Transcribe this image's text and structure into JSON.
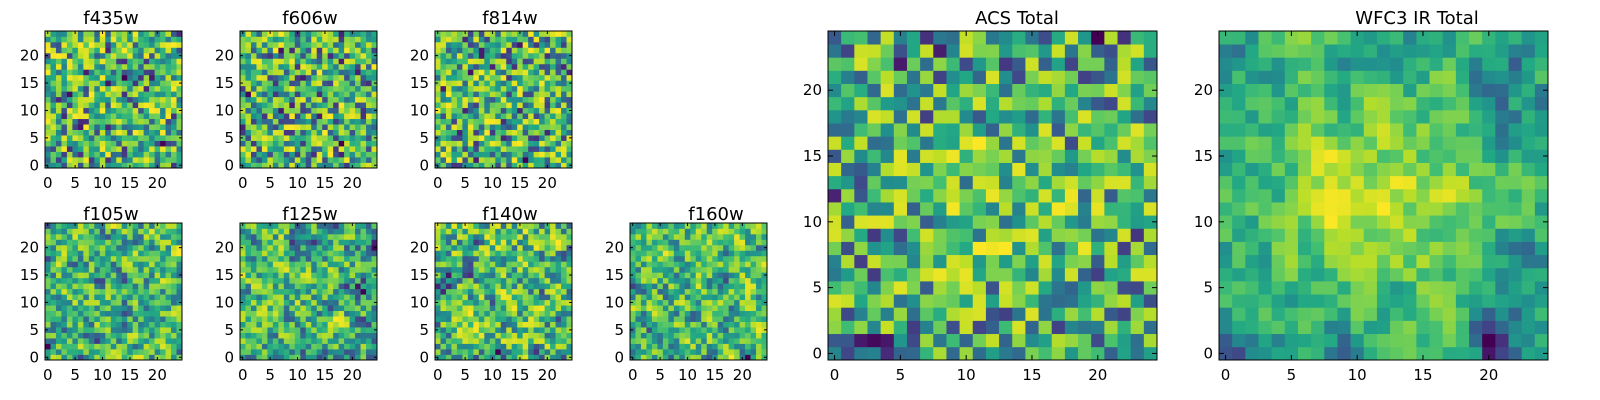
{
  "chart_data": [
    {
      "type": "heatmap",
      "title": "f435w",
      "colormap": "viridis",
      "grid": false,
      "xticks": [
        "0",
        "5",
        "10",
        "15",
        "20"
      ],
      "yticks": [
        "0",
        "5",
        "10",
        "15",
        "20"
      ],
      "xlim": [
        -0.5,
        24.5
      ],
      "ylim": [
        -0.5,
        24.5
      ],
      "shape": [
        25,
        25
      ],
      "seed": 11,
      "smooth": 0,
      "notes": "25x25 pixel cutout, noise-like values"
    },
    {
      "type": "heatmap",
      "title": "f606w",
      "colormap": "viridis",
      "grid": false,
      "xticks": [
        "0",
        "5",
        "10",
        "15",
        "20"
      ],
      "yticks": [
        "0",
        "5",
        "10",
        "15",
        "20"
      ],
      "xlim": [
        -0.5,
        24.5
      ],
      "ylim": [
        -0.5,
        24.5
      ],
      "shape": [
        25,
        25
      ],
      "seed": 23,
      "smooth": 0
    },
    {
      "type": "heatmap",
      "title": "f814w",
      "colormap": "viridis",
      "grid": false,
      "xticks": [
        "0",
        "5",
        "10",
        "15",
        "20"
      ],
      "yticks": [
        "0",
        "5",
        "10",
        "15",
        "20"
      ],
      "xlim": [
        -0.5,
        24.5
      ],
      "ylim": [
        -0.5,
        24.5
      ],
      "shape": [
        25,
        25
      ],
      "seed": 37,
      "smooth": 0
    },
    {
      "type": "heatmap",
      "title": "f105w",
      "colormap": "viridis",
      "grid": false,
      "xticks": [
        "0",
        "5",
        "10",
        "15",
        "20"
      ],
      "yticks": [
        "0",
        "5",
        "10",
        "15",
        "20"
      ],
      "xlim": [
        -0.5,
        24.5
      ],
      "ylim": [
        -0.5,
        24.5
      ],
      "shape": [
        25,
        25
      ],
      "seed": 41,
      "smooth": 1
    },
    {
      "type": "heatmap",
      "title": "f125w",
      "colormap": "viridis",
      "grid": false,
      "xticks": [
        "0",
        "5",
        "10",
        "15",
        "20"
      ],
      "yticks": [
        "0",
        "5",
        "10",
        "15",
        "20"
      ],
      "xlim": [
        -0.5,
        24.5
      ],
      "ylim": [
        -0.5,
        24.5
      ],
      "shape": [
        25,
        25
      ],
      "seed": 53,
      "smooth": 1
    },
    {
      "type": "heatmap",
      "title": "f140w",
      "colormap": "viridis",
      "grid": false,
      "xticks": [
        "0",
        "5",
        "10",
        "15",
        "20"
      ],
      "yticks": [
        "0",
        "5",
        "10",
        "15",
        "20"
      ],
      "xlim": [
        -0.5,
        24.5
      ],
      "ylim": [
        -0.5,
        24.5
      ],
      "shape": [
        25,
        25
      ],
      "seed": 67,
      "smooth": 1
    },
    {
      "type": "heatmap",
      "title": "f160w",
      "colormap": "viridis",
      "grid": false,
      "xticks": [
        "0",
        "5",
        "10",
        "15",
        "20"
      ],
      "yticks": [
        "0",
        "5",
        "10",
        "15",
        "20"
      ],
      "xlim": [
        -0.5,
        24.5
      ],
      "ylim": [
        -0.5,
        24.5
      ],
      "shape": [
        25,
        25
      ],
      "seed": 79,
      "smooth": 1
    },
    {
      "type": "heatmap",
      "title": "ACS Total",
      "colormap": "viridis",
      "grid": false,
      "xticks": [
        "0",
        "5",
        "10",
        "15",
        "20"
      ],
      "yticks": [
        "0",
        "5",
        "10",
        "15",
        "20"
      ],
      "xlim": [
        -0.5,
        24.5
      ],
      "ylim": [
        -0.5,
        24.5
      ],
      "shape": [
        25,
        25
      ],
      "seed": 97,
      "smooth": 0,
      "center_glow": 0.15
    },
    {
      "type": "heatmap",
      "title": "WFC3 IR Total",
      "colormap": "viridis",
      "grid": false,
      "xticks": [
        "0",
        "5",
        "10",
        "15",
        "20"
      ],
      "yticks": [
        "0",
        "5",
        "10",
        "15",
        "20"
      ],
      "xlim": [
        -0.5,
        24.5
      ],
      "ylim": [
        -0.5,
        24.5
      ],
      "shape": [
        25,
        25
      ],
      "seed": 131,
      "smooth": 2,
      "center_glow": 0.45
    }
  ]
}
